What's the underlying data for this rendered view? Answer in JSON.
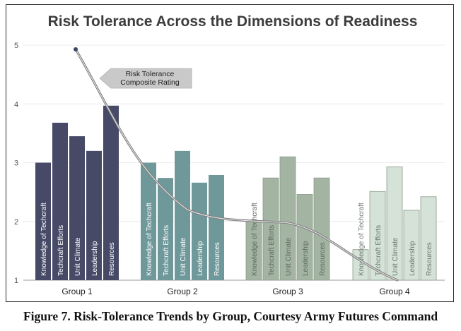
{
  "caption": "Figure 7. Risk-Tolerance Trends by Group, Courtesy Army Futures Command",
  "chart_data": {
    "type": "bar",
    "title": "Risk Tolerance Across the Dimensions of Readiness",
    "xlabel": "",
    "ylabel": "",
    "ylim": [
      1,
      5
    ],
    "yticks": [
      1,
      2,
      3,
      4,
      5
    ],
    "grid": true,
    "groups": [
      {
        "name": "Group 1",
        "color": "#464a67",
        "label_color": "#ffffff",
        "bars": [
          {
            "label": "Knowledge of Techcraft",
            "value": 3.0
          },
          {
            "label": "Techcraft Efforts",
            "value": 3.68
          },
          {
            "label": "Unit Climate",
            "value": 3.45
          },
          {
            "label": "Leadership",
            "value": 3.2
          },
          {
            "label": "Resources",
            "value": 3.97
          }
        ]
      },
      {
        "name": "Group 2",
        "color": "#6f989b",
        "label_color": "#ffffff",
        "bars": [
          {
            "label": "Knowledge of Techcraft",
            "value": 3.0
          },
          {
            "label": "Techcraft Efforts",
            "value": 2.74
          },
          {
            "label": "Unit Climate",
            "value": 3.2
          },
          {
            "label": "Leadership",
            "value": 2.66
          },
          {
            "label": "Resources",
            "value": 2.79
          }
        ]
      },
      {
        "name": "Group 3",
        "color": "#a3b4a2",
        "label_color": "#5e6a5e",
        "bars": [
          {
            "label": "Knowledge of Techcraft",
            "value": 2.0
          },
          {
            "label": "Techcraft Efforts",
            "value": 2.74
          },
          {
            "label": "Unit Climate",
            "value": 3.1
          },
          {
            "label": "Leadership",
            "value": 2.46
          },
          {
            "label": "Resources",
            "value": 2.74
          }
        ]
      },
      {
        "name": "Group 4",
        "color": "#d5e2d7",
        "label_color": "#6c786d",
        "bars": [
          {
            "label": "Knowledge of Techcraft",
            "value": 1.52
          },
          {
            "label": "Techcraft Efforts",
            "value": 2.51
          },
          {
            "label": "Unit Climate",
            "value": 2.93
          },
          {
            "label": "Leadership",
            "value": 2.19
          },
          {
            "label": "Resources",
            "value": 2.42
          }
        ]
      }
    ],
    "trend_line": {
      "name": "Risk Tolerance Composite Rating",
      "color": "#808080",
      "points": [
        {
          "group": "Group 1",
          "value": 4.93
        },
        {
          "group": "Group 2",
          "value": 2.2
        },
        {
          "group": "Group 3",
          "value": 1.98
        },
        {
          "group": "Group 4",
          "value": 1.0
        }
      ]
    },
    "annotation": {
      "lines": [
        "Risk Tolerance",
        "Composite Rating"
      ],
      "fill": "#c9c9c9"
    }
  }
}
